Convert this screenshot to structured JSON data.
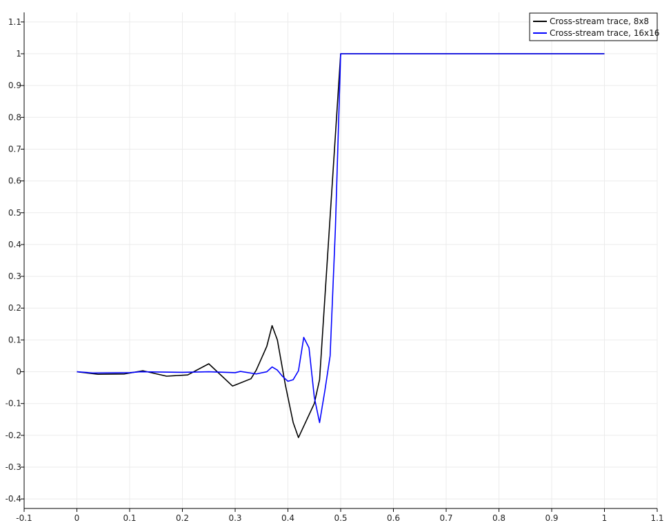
{
  "chart_data": {
    "type": "line",
    "title": "",
    "xlabel": "",
    "ylabel": "",
    "xlim": [
      -0.1,
      1.1
    ],
    "ylim": [
      -0.43,
      1.13
    ],
    "xticks": [
      -0.1,
      0,
      0.1,
      0.2,
      0.3,
      0.4,
      0.5,
      0.6,
      0.7,
      0.8,
      0.9,
      1,
      1.1
    ],
    "xtick_labels": [
      "-0.1",
      "0",
      "0.1",
      "0.2",
      "0.3",
      "0.4",
      "0.5",
      "0.6",
      "0.7",
      "0.8",
      "0.9",
      "1",
      "1.1"
    ],
    "yticks": [
      -0.4,
      -0.3,
      -0.2,
      -0.1,
      0,
      0.1,
      0.2,
      0.3,
      0.4,
      0.5,
      0.6,
      0.7,
      0.8,
      0.9,
      1,
      1.1
    ],
    "ytick_labels": [
      "-0.4",
      "-0.3",
      "-0.2",
      "-0.1",
      "0",
      "0.1",
      "0.2",
      "0.3",
      "0.4",
      "0.5",
      "0.6",
      "0.7",
      "0.8",
      "0.9",
      "1",
      "1.1"
    ],
    "grid": true,
    "legend_position": "top-right",
    "series": [
      {
        "name": "Cross-stream trace, 8x8",
        "color": "#000000",
        "x": [
          0,
          0.04,
          0.09,
          0.125,
          0.17,
          0.21,
          0.25,
          0.295,
          0.3,
          0.33,
          0.34,
          0.36,
          0.37,
          0.38,
          0.395,
          0.41,
          0.42,
          0.45,
          0.46,
          0.5,
          1
        ],
        "y": [
          0,
          -0.008,
          -0.007,
          0.003,
          -0.014,
          -0.01,
          0.025,
          -0.045,
          -0.042,
          -0.022,
          0.005,
          0.08,
          0.145,
          0.1,
          -0.04,
          -0.16,
          -0.207,
          -0.1,
          -0.025,
          1,
          1
        ]
      },
      {
        "name": "Cross-stream trace, 16x16",
        "color": "#0000ff",
        "x": [
          0,
          0.03,
          0.1,
          0.12,
          0.2,
          0.25,
          0.3,
          0.31,
          0.34,
          0.36,
          0.37,
          0.38,
          0.39,
          0.4,
          0.41,
          0.42,
          0.43,
          0.44,
          0.45,
          0.46,
          0.47,
          0.48,
          0.49,
          0.5,
          1
        ],
        "y": [
          0,
          -0.004,
          -0.003,
          0,
          -0.002,
          0,
          -0.003,
          0.001,
          -0.007,
          0,
          0.015,
          0.005,
          -0.015,
          -0.03,
          -0.025,
          0.003,
          0.108,
          0.075,
          -0.08,
          -0.16,
          -0.06,
          0.05,
          0.45,
          1,
          1
        ]
      }
    ]
  }
}
